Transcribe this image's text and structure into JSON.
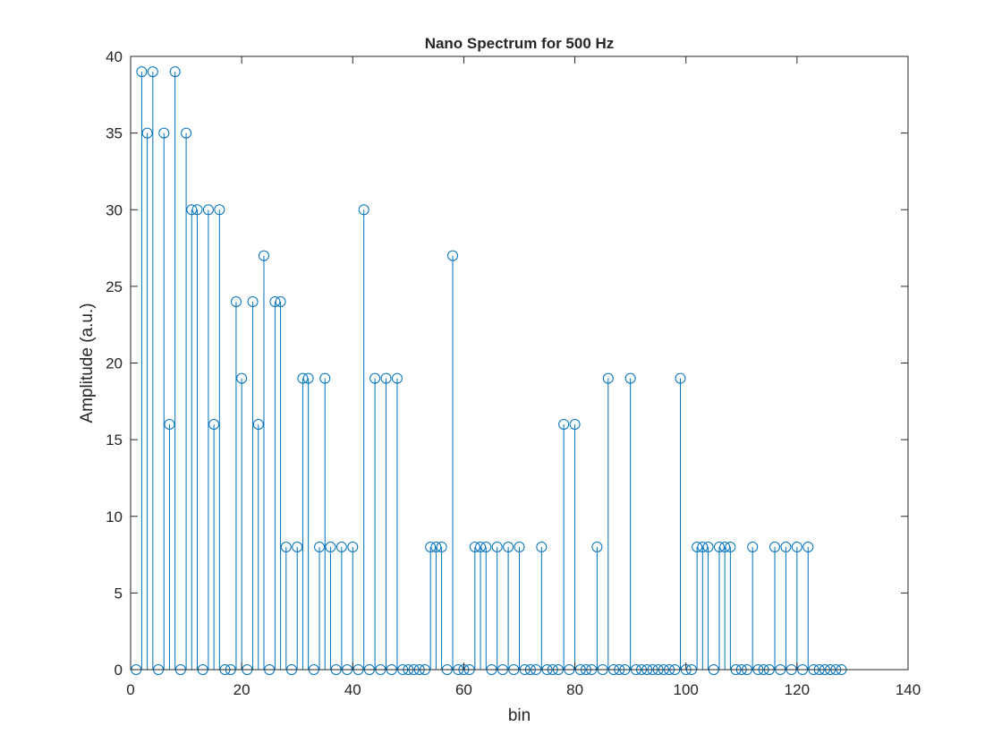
{
  "colors": {
    "series": "#0072BD",
    "axes": "#262626",
    "background": "#ffffff"
  },
  "chart_data": {
    "type": "stem",
    "title": "Nano Spectrum for 500 Hz",
    "xlabel": "bin",
    "ylabel": "Amplitude (a.u.)",
    "xlim": [
      0,
      140
    ],
    "ylim": [
      0,
      40
    ],
    "xticks": [
      0,
      20,
      40,
      60,
      80,
      100,
      120,
      140
    ],
    "yticks": [
      0,
      5,
      10,
      15,
      20,
      25,
      30,
      35,
      40
    ],
    "grid": false,
    "series": [
      {
        "name": "spectrum",
        "x_start": 1,
        "values": [
          0,
          39,
          35,
          39,
          0,
          35,
          16,
          39,
          0,
          35,
          30,
          30,
          0,
          30,
          16,
          30,
          0,
          0,
          24,
          19,
          0,
          24,
          16,
          27,
          0,
          24,
          24,
          8,
          0,
          8,
          19,
          19,
          0,
          8,
          19,
          8,
          0,
          8,
          0,
          8,
          0,
          30,
          0,
          19,
          0,
          19,
          0,
          19,
          0,
          0,
          0,
          0,
          0,
          8,
          8,
          8,
          0,
          27,
          0,
          0,
          0,
          8,
          8,
          8,
          0,
          8,
          0,
          8,
          0,
          8,
          0,
          0,
          0,
          8,
          0,
          0,
          0,
          16,
          0,
          16,
          0,
          0,
          0,
          8,
          0,
          19,
          0,
          0,
          0,
          19,
          0,
          0,
          0,
          0,
          0,
          0,
          0,
          0,
          19,
          0,
          0,
          8,
          8,
          8,
          0,
          8,
          8,
          8,
          0,
          0,
          0,
          8,
          0,
          0,
          0,
          8,
          0,
          8,
          0,
          8,
          0,
          8,
          0,
          0,
          0,
          0,
          0,
          0
        ]
      }
    ]
  }
}
